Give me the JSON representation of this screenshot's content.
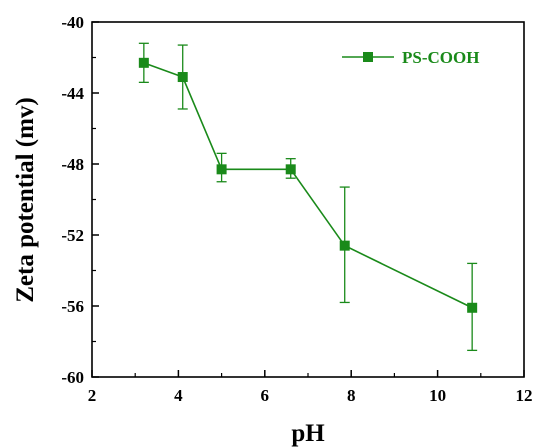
{
  "chart_data": {
    "type": "line",
    "xlabel": "pH",
    "ylabel": "Zeta potential (mv)",
    "xlim": [
      2,
      12
    ],
    "ylim": [
      -60,
      -40
    ],
    "xticks": [
      2,
      4,
      6,
      8,
      10,
      12
    ],
    "yticks": [
      -60,
      -56,
      -52,
      -48,
      -44,
      -40
    ],
    "grid": false,
    "legend": "top-right",
    "marker": "square",
    "color": "#1a8a1a",
    "series": [
      {
        "name": "PS-COOH",
        "x": [
          3.2,
          4.1,
          5.0,
          6.6,
          7.85,
          10.8
        ],
        "y": [
          -42.3,
          -43.1,
          -48.3,
          -48.3,
          -52.6,
          -56.1
        ],
        "err_low": [
          1.1,
          1.8,
          0.7,
          0.5,
          3.2,
          2.4
        ],
        "err_high": [
          1.1,
          1.8,
          0.9,
          0.6,
          3.3,
          2.5
        ]
      }
    ]
  }
}
